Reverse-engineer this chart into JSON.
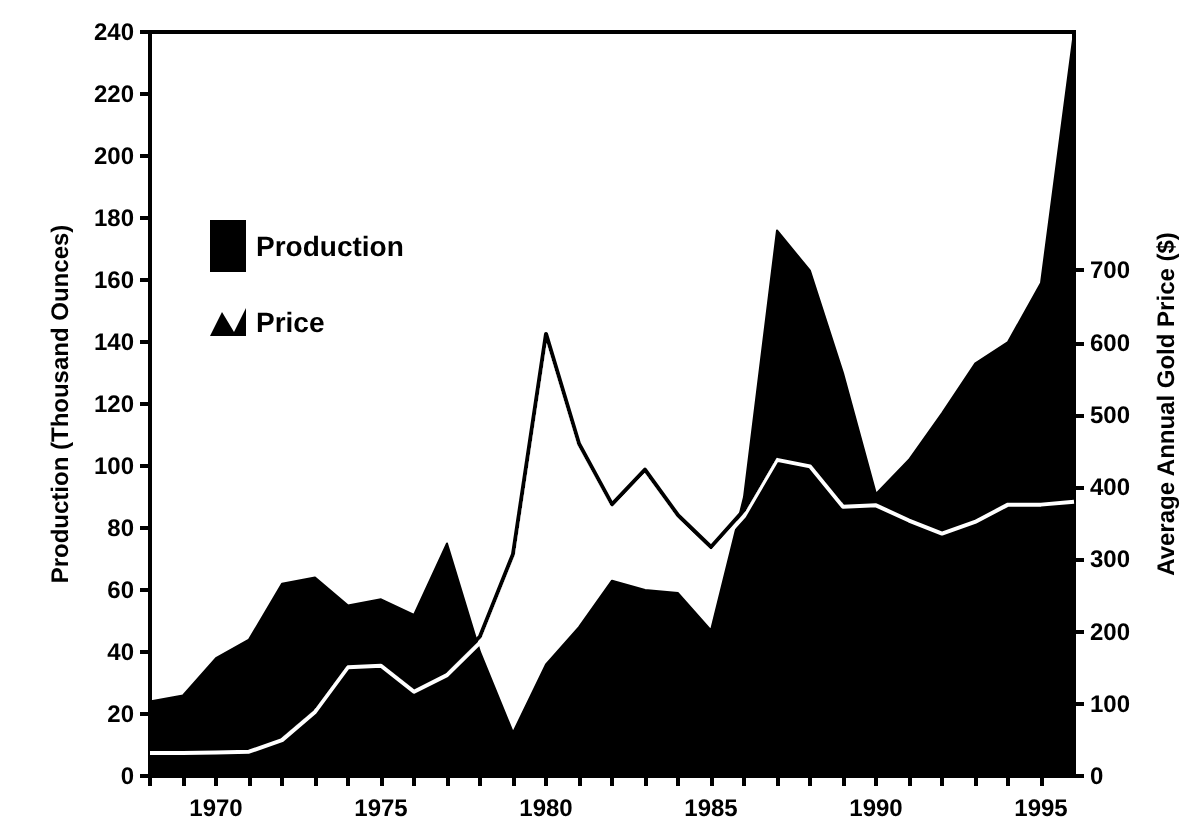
{
  "chart_data": {
    "type": "area",
    "ylabel": "Production (Thousand Ounces)",
    "y2label": "Average Annual Gold Price ($)",
    "x": [
      1968,
      1969,
      1970,
      1971,
      1972,
      1973,
      1974,
      1975,
      1976,
      1977,
      1978,
      1979,
      1980,
      1981,
      1982,
      1983,
      1984,
      1985,
      1986,
      1987,
      1988,
      1989,
      1990,
      1991,
      1992,
      1993,
      1994,
      1995,
      1996
    ],
    "series": [
      {
        "name": "Production",
        "color": "#000000",
        "values": [
          24,
          26,
          38,
          44,
          62,
          64,
          55,
          57,
          52,
          75,
          40,
          14,
          36,
          48,
          63,
          60,
          59,
          47,
          90,
          176,
          163,
          130,
          91,
          102,
          117,
          133,
          140,
          159,
          240
        ]
      },
      {
        "name": "Price",
        "type": "line",
        "axis": "y2",
        "color": "#000000",
        "values": [
          40,
          40,
          41,
          42,
          58,
          97,
          159,
          161,
          125,
          148,
          193,
          307,
          612,
          460,
          376,
          424,
          361,
          317,
          368,
          446,
          437,
          381,
          383,
          362,
          344,
          360,
          384,
          384,
          388
        ]
      }
    ],
    "xlim": [
      1968,
      1996
    ],
    "xticks": [
      {
        "value": 1968,
        "label": null
      },
      {
        "value": 1969,
        "label": null
      },
      1970,
      {
        "value": 1971,
        "label": null
      },
      {
        "value": 1972,
        "label": null
      },
      {
        "value": 1973,
        "label": null
      },
      {
        "value": 1974,
        "label": null
      },
      1975,
      {
        "value": 1976,
        "label": null
      },
      {
        "value": 1977,
        "label": null
      },
      {
        "value": 1978,
        "label": null
      },
      {
        "value": 1979,
        "label": null
      },
      1980,
      {
        "value": 1981,
        "label": null
      },
      {
        "value": 1982,
        "label": null
      },
      {
        "value": 1983,
        "label": null
      },
      {
        "value": 1984,
        "label": null
      },
      1985,
      {
        "value": 1986,
        "label": null
      },
      {
        "value": 1987,
        "label": null
      },
      {
        "value": 1988,
        "label": null
      },
      {
        "value": 1989,
        "label": null
      },
      1990,
      {
        "value": 1991,
        "label": null
      },
      {
        "value": 1992,
        "label": null
      },
      {
        "value": 1993,
        "label": null
      },
      {
        "value": 1994,
        "label": null
      },
      1995
    ],
    "ylim": [
      0,
      240
    ],
    "yticks": [
      0,
      20,
      40,
      60,
      80,
      100,
      120,
      140,
      160,
      180,
      200,
      220,
      240
    ],
    "y2lim": [
      0,
      1030
    ],
    "y2ticks": [
      0,
      100,
      200,
      300,
      400,
      500,
      600,
      700
    ],
    "legend": "top left",
    "marker": "none"
  }
}
